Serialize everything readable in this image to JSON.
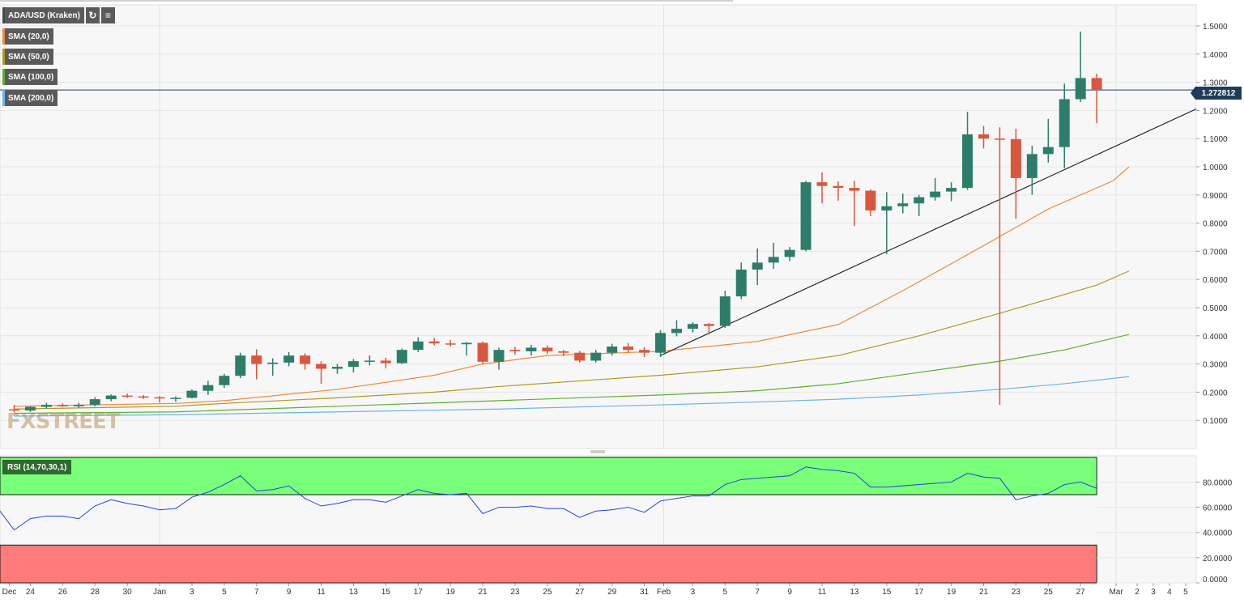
{
  "chart_data": {
    "type": "candlestick",
    "title": "ADA/USD (Kraken)",
    "price_axis": {
      "ticks": [
        "0.1000",
        "0.2000",
        "0.3000",
        "0.4000",
        "0.5000",
        "0.6000",
        "0.7000",
        "0.8000",
        "0.9000",
        "1.0000",
        "1.1000",
        "1.2000",
        "1.3000",
        "1.4000",
        "1.5000"
      ],
      "range": [
        0.0,
        1.55
      ]
    },
    "current_price": {
      "label": "1.272812",
      "value": 1.2728
    },
    "x_ticks": [
      "Dec",
      "24",
      "26",
      "28",
      "30",
      "Jan",
      "3",
      "5",
      "7",
      "9",
      "11",
      "13",
      "15",
      "17",
      "19",
      "21",
      "23",
      "25",
      "27",
      "29",
      "31",
      "Feb",
      "3",
      "5",
      "7",
      "9",
      "11",
      "13",
      "15",
      "17",
      "19",
      "21",
      "23",
      "25",
      "27",
      "Mar",
      "2",
      "3",
      "4",
      "5"
    ],
    "candles": [
      {
        "date": "2020-12-23",
        "o": 0.139,
        "h": 0.155,
        "l": 0.128,
        "c": 0.135
      },
      {
        "date": "2020-12-24",
        "o": 0.135,
        "h": 0.15,
        "l": 0.13,
        "c": 0.148
      },
      {
        "date": "2020-12-25",
        "o": 0.148,
        "h": 0.162,
        "l": 0.142,
        "c": 0.155
      },
      {
        "date": "2020-12-26",
        "o": 0.155,
        "h": 0.16,
        "l": 0.147,
        "c": 0.15
      },
      {
        "date": "2020-12-27",
        "o": 0.15,
        "h": 0.162,
        "l": 0.145,
        "c": 0.155
      },
      {
        "date": "2020-12-28",
        "o": 0.155,
        "h": 0.182,
        "l": 0.15,
        "c": 0.175
      },
      {
        "date": "2020-12-29",
        "o": 0.175,
        "h": 0.192,
        "l": 0.168,
        "c": 0.188
      },
      {
        "date": "2020-12-30",
        "o": 0.188,
        "h": 0.195,
        "l": 0.18,
        "c": 0.185
      },
      {
        "date": "2020-12-31",
        "o": 0.185,
        "h": 0.19,
        "l": 0.176,
        "c": 0.182
      },
      {
        "date": "2021-01-01",
        "o": 0.182,
        "h": 0.186,
        "l": 0.163,
        "c": 0.178
      },
      {
        "date": "2021-01-02",
        "o": 0.178,
        "h": 0.185,
        "l": 0.166,
        "c": 0.18
      },
      {
        "date": "2021-01-03",
        "o": 0.18,
        "h": 0.21,
        "l": 0.178,
        "c": 0.205
      },
      {
        "date": "2021-01-04",
        "o": 0.205,
        "h": 0.24,
        "l": 0.19,
        "c": 0.225
      },
      {
        "date": "2021-01-05",
        "o": 0.225,
        "h": 0.265,
        "l": 0.215,
        "c": 0.258
      },
      {
        "date": "2021-01-06",
        "o": 0.258,
        "h": 0.34,
        "l": 0.25,
        "c": 0.33
      },
      {
        "date": "2021-01-07",
        "o": 0.33,
        "h": 0.352,
        "l": 0.245,
        "c": 0.3
      },
      {
        "date": "2021-01-08",
        "o": 0.3,
        "h": 0.32,
        "l": 0.258,
        "c": 0.305
      },
      {
        "date": "2021-01-09",
        "o": 0.305,
        "h": 0.342,
        "l": 0.292,
        "c": 0.33
      },
      {
        "date": "2021-01-10",
        "o": 0.33,
        "h": 0.338,
        "l": 0.28,
        "c": 0.3
      },
      {
        "date": "2021-01-11",
        "o": 0.3,
        "h": 0.31,
        "l": 0.23,
        "c": 0.283
      },
      {
        "date": "2021-01-12",
        "o": 0.283,
        "h": 0.3,
        "l": 0.265,
        "c": 0.29
      },
      {
        "date": "2021-01-13",
        "o": 0.29,
        "h": 0.318,
        "l": 0.27,
        "c": 0.31
      },
      {
        "date": "2021-01-14",
        "o": 0.31,
        "h": 0.33,
        "l": 0.295,
        "c": 0.312
      },
      {
        "date": "2021-01-15",
        "o": 0.312,
        "h": 0.322,
        "l": 0.285,
        "c": 0.303
      },
      {
        "date": "2021-01-16",
        "o": 0.303,
        "h": 0.355,
        "l": 0.3,
        "c": 0.35
      },
      {
        "date": "2021-01-17",
        "o": 0.35,
        "h": 0.395,
        "l": 0.342,
        "c": 0.38
      },
      {
        "date": "2021-01-18",
        "o": 0.38,
        "h": 0.392,
        "l": 0.366,
        "c": 0.373
      },
      {
        "date": "2021-01-19",
        "o": 0.373,
        "h": 0.385,
        "l": 0.362,
        "c": 0.37
      },
      {
        "date": "2021-01-20",
        "o": 0.37,
        "h": 0.378,
        "l": 0.33,
        "c": 0.375
      },
      {
        "date": "2021-01-21",
        "o": 0.375,
        "h": 0.38,
        "l": 0.3,
        "c": 0.308
      },
      {
        "date": "2021-01-22",
        "o": 0.308,
        "h": 0.358,
        "l": 0.28,
        "c": 0.35
      },
      {
        "date": "2021-01-23",
        "o": 0.35,
        "h": 0.36,
        "l": 0.333,
        "c": 0.345
      },
      {
        "date": "2021-01-24",
        "o": 0.345,
        "h": 0.368,
        "l": 0.33,
        "c": 0.358
      },
      {
        "date": "2021-01-25",
        "o": 0.358,
        "h": 0.366,
        "l": 0.336,
        "c": 0.345
      },
      {
        "date": "2021-01-26",
        "o": 0.345,
        "h": 0.35,
        "l": 0.328,
        "c": 0.34
      },
      {
        "date": "2021-01-27",
        "o": 0.34,
        "h": 0.346,
        "l": 0.305,
        "c": 0.312
      },
      {
        "date": "2021-01-28",
        "o": 0.312,
        "h": 0.35,
        "l": 0.305,
        "c": 0.34
      },
      {
        "date": "2021-01-29",
        "o": 0.34,
        "h": 0.372,
        "l": 0.33,
        "c": 0.362
      },
      {
        "date": "2021-01-30",
        "o": 0.362,
        "h": 0.374,
        "l": 0.34,
        "c": 0.35
      },
      {
        "date": "2021-01-31",
        "o": 0.35,
        "h": 0.36,
        "l": 0.325,
        "c": 0.34
      },
      {
        "date": "2021-02-01",
        "o": 0.34,
        "h": 0.42,
        "l": 0.325,
        "c": 0.41
      },
      {
        "date": "2021-02-02",
        "o": 0.41,
        "h": 0.455,
        "l": 0.398,
        "c": 0.425
      },
      {
        "date": "2021-02-03",
        "o": 0.425,
        "h": 0.448,
        "l": 0.412,
        "c": 0.442
      },
      {
        "date": "2021-02-04",
        "o": 0.442,
        "h": 0.445,
        "l": 0.405,
        "c": 0.435
      },
      {
        "date": "2021-02-05",
        "o": 0.435,
        "h": 0.56,
        "l": 0.428,
        "c": 0.54
      },
      {
        "date": "2021-02-06",
        "o": 0.54,
        "h": 0.66,
        "l": 0.53,
        "c": 0.635
      },
      {
        "date": "2021-02-07",
        "o": 0.635,
        "h": 0.71,
        "l": 0.58,
        "c": 0.66
      },
      {
        "date": "2021-02-08",
        "o": 0.66,
        "h": 0.73,
        "l": 0.638,
        "c": 0.68
      },
      {
        "date": "2021-02-09",
        "o": 0.68,
        "h": 0.715,
        "l": 0.665,
        "c": 0.705
      },
      {
        "date": "2021-02-10",
        "o": 0.705,
        "h": 0.95,
        "l": 0.7,
        "c": 0.945
      },
      {
        "date": "2021-02-11",
        "o": 0.945,
        "h": 0.98,
        "l": 0.87,
        "c": 0.932
      },
      {
        "date": "2021-02-12",
        "o": 0.932,
        "h": 0.948,
        "l": 0.88,
        "c": 0.925
      },
      {
        "date": "2021-02-13",
        "o": 0.925,
        "h": 0.95,
        "l": 0.79,
        "c": 0.915
      },
      {
        "date": "2021-02-14",
        "o": 0.915,
        "h": 0.92,
        "l": 0.825,
        "c": 0.845
      },
      {
        "date": "2021-02-15",
        "o": 0.845,
        "h": 0.91,
        "l": 0.69,
        "c": 0.86
      },
      {
        "date": "2021-02-16",
        "o": 0.86,
        "h": 0.905,
        "l": 0.835,
        "c": 0.87
      },
      {
        "date": "2021-02-17",
        "o": 0.87,
        "h": 0.9,
        "l": 0.825,
        "c": 0.892
      },
      {
        "date": "2021-02-18",
        "o": 0.892,
        "h": 0.96,
        "l": 0.88,
        "c": 0.912
      },
      {
        "date": "2021-02-19",
        "o": 0.912,
        "h": 0.945,
        "l": 0.878,
        "c": 0.925
      },
      {
        "date": "2021-02-20",
        "o": 0.925,
        "h": 1.195,
        "l": 0.918,
        "c": 1.115
      },
      {
        "date": "2021-02-21",
        "o": 1.115,
        "h": 1.145,
        "l": 1.065,
        "c": 1.1
      },
      {
        "date": "2021-02-22",
        "o": 1.1,
        "h": 1.14,
        "l": 0.155,
        "c": 1.098
      },
      {
        "date": "2021-02-23",
        "o": 1.098,
        "h": 1.135,
        "l": 0.815,
        "c": 0.96
      },
      {
        "date": "2021-02-24",
        "o": 0.96,
        "h": 1.075,
        "l": 0.9,
        "c": 1.045
      },
      {
        "date": "2021-02-25",
        "o": 1.045,
        "h": 1.17,
        "l": 1.015,
        "c": 1.07
      },
      {
        "date": "2021-02-26",
        "o": 1.07,
        "h": 1.295,
        "l": 0.995,
        "c": 1.24
      },
      {
        "date": "2021-02-27",
        "o": 1.24,
        "h": 1.48,
        "l": 1.23,
        "c": 1.315
      },
      {
        "date": "2021-02-28",
        "o": 1.315,
        "h": 1.33,
        "l": 1.155,
        "c": 1.273
      }
    ],
    "indicators": [
      {
        "name": "SMA (20,0)",
        "color": "#f08a3c",
        "points": [
          [
            0,
            0.15
          ],
          [
            10,
            0.16
          ],
          [
            13,
            0.17
          ],
          [
            20,
            0.21
          ],
          [
            26,
            0.26
          ],
          [
            29,
            0.3
          ],
          [
            33,
            0.33
          ],
          [
            40,
            0.345
          ],
          [
            46,
            0.38
          ],
          [
            51,
            0.44
          ],
          [
            55,
            0.56
          ],
          [
            60,
            0.72
          ],
          [
            64,
            0.85
          ],
          [
            68,
            0.95
          ],
          [
            69,
            1.0
          ]
        ]
      },
      {
        "name": "SMA (50,0)",
        "color": "#b09a22",
        "points": [
          [
            0,
            0.14
          ],
          [
            10,
            0.15
          ],
          [
            13,
            0.16
          ],
          [
            20,
            0.18
          ],
          [
            26,
            0.2
          ],
          [
            30,
            0.22
          ],
          [
            40,
            0.26
          ],
          [
            46,
            0.29
          ],
          [
            51,
            0.33
          ],
          [
            56,
            0.4
          ],
          [
            61,
            0.48
          ],
          [
            67,
            0.58
          ],
          [
            69,
            0.63
          ]
        ]
      },
      {
        "name": "SMA (100,0)",
        "color": "#5fae30",
        "points": [
          [
            0,
            0.125
          ],
          [
            10,
            0.13
          ],
          [
            20,
            0.15
          ],
          [
            30,
            0.17
          ],
          [
            40,
            0.19
          ],
          [
            46,
            0.205
          ],
          [
            51,
            0.23
          ],
          [
            56,
            0.27
          ],
          [
            61,
            0.31
          ],
          [
            65,
            0.35
          ],
          [
            69,
            0.405
          ]
        ]
      },
      {
        "name": "SMA (200,0)",
        "color": "#6cb4e8",
        "points": [
          [
            0,
            0.115
          ],
          [
            10,
            0.12
          ],
          [
            20,
            0.13
          ],
          [
            30,
            0.14
          ],
          [
            40,
            0.155
          ],
          [
            46,
            0.165
          ],
          [
            51,
            0.175
          ],
          [
            56,
            0.19
          ],
          [
            61,
            0.21
          ],
          [
            65,
            0.23
          ],
          [
            69,
            0.255
          ]
        ]
      }
    ],
    "trendline": {
      "from": {
        "date": "2021-02-01",
        "value": 0.33
      },
      "to": {
        "date": "2021-03-04",
        "value": 1.205
      }
    },
    "rsi": {
      "name": "RSI (14,70,30,1)",
      "ticks": [
        "0.0000",
        "20.0000",
        "40.0000",
        "60.0000",
        "80.0000"
      ],
      "overbought": 70,
      "oversold": 30,
      "values": [
        [
          -1,
          59
        ],
        [
          0,
          42
        ],
        [
          1,
          51
        ],
        [
          2,
          53
        ],
        [
          3,
          53
        ],
        [
          4,
          51
        ],
        [
          5,
          61
        ],
        [
          6,
          66
        ],
        [
          7,
          63
        ],
        [
          8,
          61
        ],
        [
          9,
          58
        ],
        [
          10,
          59
        ],
        [
          11,
          68
        ],
        [
          12,
          72
        ],
        [
          13,
          78
        ],
        [
          14,
          85
        ],
        [
          15,
          73
        ],
        [
          16,
          74
        ],
        [
          17,
          77
        ],
        [
          18,
          67
        ],
        [
          19,
          61
        ],
        [
          20,
          63
        ],
        [
          21,
          66
        ],
        [
          22,
          66
        ],
        [
          23,
          64
        ],
        [
          24,
          69
        ],
        [
          25,
          74
        ],
        [
          26,
          71
        ],
        [
          27,
          70
        ],
        [
          28,
          71
        ],
        [
          29,
          55
        ],
        [
          30,
          60
        ],
        [
          31,
          60
        ],
        [
          32,
          61
        ],
        [
          33,
          59
        ],
        [
          34,
          59
        ],
        [
          35,
          52
        ],
        [
          36,
          57
        ],
        [
          37,
          58
        ],
        [
          38,
          60
        ],
        [
          39,
          56
        ],
        [
          40,
          65
        ],
        [
          41,
          67
        ],
        [
          42,
          69
        ],
        [
          43,
          69
        ],
        [
          44,
          78
        ],
        [
          45,
          82
        ],
        [
          46,
          83
        ],
        [
          47,
          84
        ],
        [
          48,
          85
        ],
        [
          49,
          92
        ],
        [
          50,
          90
        ],
        [
          51,
          89
        ],
        [
          52,
          87
        ],
        [
          53,
          76
        ],
        [
          54,
          76
        ],
        [
          55,
          77
        ],
        [
          56,
          78
        ],
        [
          57,
          79
        ],
        [
          58,
          80
        ],
        [
          59,
          87
        ],
        [
          60,
          84
        ],
        [
          61,
          83
        ],
        [
          62,
          66
        ],
        [
          63,
          69
        ],
        [
          64,
          71
        ],
        [
          65,
          78
        ],
        [
          66,
          80
        ],
        [
          67,
          75
        ]
      ]
    }
  },
  "toolbar": {
    "refresh_icon": "refresh-icon",
    "bars_icon": "bar-chart-icon"
  },
  "watermark": "FXSTREET"
}
